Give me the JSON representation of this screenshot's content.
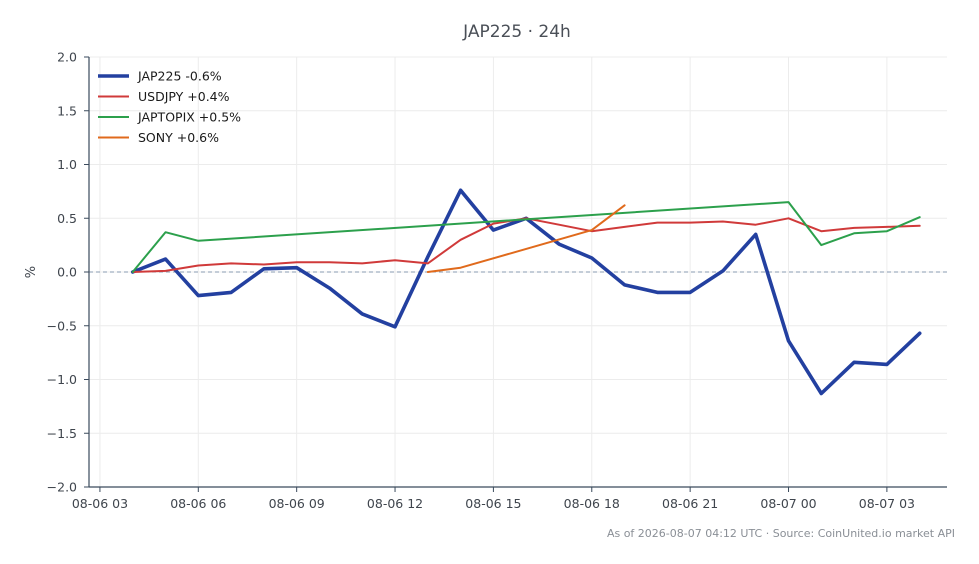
{
  "chart_data": {
    "type": "line",
    "title": "JAP225 · 24h",
    "xlabel": "",
    "ylabel": "%",
    "ylim": [
      -2.0,
      2.0
    ],
    "y_ticks": [
      -2.0,
      -1.5,
      -1.0,
      -0.5,
      0.0,
      0.5,
      1.0,
      1.5,
      2.0
    ],
    "y_tick_labels": [
      "−2.0",
      "−1.5",
      "−1.0",
      "−0.5",
      "0.0",
      "0.5",
      "1.0",
      "1.5",
      "2.0"
    ],
    "x_range": [
      "2026-08-06 02:40",
      "2026-08-07 04:50"
    ],
    "x_ticks": [
      "2026-08-06 03:00",
      "2026-08-06 06:00",
      "2026-08-06 09:00",
      "2026-08-06 12:00",
      "2026-08-06 15:00",
      "2026-08-06 18:00",
      "2026-08-06 21:00",
      "2026-08-07 00:00",
      "2026-08-07 03:00"
    ],
    "x_tick_labels": [
      "08-06 03",
      "08-06 06",
      "08-06 09",
      "08-06 12",
      "08-06 15",
      "08-06 18",
      "08-06 21",
      "08-07 00",
      "08-07 03"
    ],
    "grid": true,
    "zero_line": true,
    "legend_position": "top-left",
    "series": [
      {
        "name": "JAP225 -0.6%",
        "color": "#2340a0",
        "x": [
          "2026-08-06 04:00",
          "2026-08-06 05:00",
          "2026-08-06 06:00",
          "2026-08-06 07:00",
          "2026-08-06 08:00",
          "2026-08-06 09:00",
          "2026-08-06 10:00",
          "2026-08-06 11:00",
          "2026-08-06 12:00",
          "2026-08-06 13:00",
          "2026-08-06 14:00",
          "2026-08-06 15:00",
          "2026-08-06 16:00",
          "2026-08-06 17:00",
          "2026-08-06 18:00",
          "2026-08-06 19:00",
          "2026-08-06 20:00",
          "2026-08-06 21:00",
          "2026-08-06 22:00",
          "2026-08-06 23:00",
          "2026-08-07 00:00",
          "2026-08-07 01:00",
          "2026-08-07 02:00",
          "2026-08-07 03:00",
          "2026-08-07 04:00"
        ],
        "values": [
          0.0,
          0.12,
          -0.22,
          -0.19,
          0.03,
          0.04,
          -0.15,
          -0.39,
          -0.51,
          0.14,
          0.76,
          0.39,
          0.5,
          0.26,
          0.13,
          -0.12,
          -0.19,
          -0.19,
          0.01,
          0.35,
          -0.64,
          -1.13,
          -0.84,
          -0.86,
          -0.57
        ]
      },
      {
        "name": "USDJPY +0.4%",
        "color": "#d03a3a",
        "x": [
          "2026-08-06 04:00",
          "2026-08-06 05:00",
          "2026-08-06 06:00",
          "2026-08-06 07:00",
          "2026-08-06 08:00",
          "2026-08-06 09:00",
          "2026-08-06 10:00",
          "2026-08-06 11:00",
          "2026-08-06 12:00",
          "2026-08-06 13:00",
          "2026-08-06 14:00",
          "2026-08-06 15:00",
          "2026-08-06 16:00",
          "2026-08-06 17:00",
          "2026-08-06 18:00",
          "2026-08-06 19:00",
          "2026-08-06 20:00",
          "2026-08-06 21:00",
          "2026-08-06 22:00",
          "2026-08-06 23:00",
          "2026-08-07 00:00",
          "2026-08-07 01:00",
          "2026-08-07 02:00",
          "2026-08-07 03:00",
          "2026-08-07 04:00"
        ],
        "values": [
          0.0,
          0.01,
          0.06,
          0.08,
          0.07,
          0.09,
          0.09,
          0.08,
          0.11,
          0.08,
          0.3,
          0.45,
          0.5,
          0.44,
          0.38,
          0.42,
          0.46,
          0.46,
          0.47,
          0.44,
          0.5,
          0.38,
          0.41,
          0.42,
          0.43
        ]
      },
      {
        "name": "JAPTOPIX +0.5%",
        "color": "#2ca04c",
        "x": [
          "2026-08-06 04:00",
          "2026-08-06 05:00",
          "2026-08-06 06:00",
          "2026-08-07 00:00",
          "2026-08-07 01:00",
          "2026-08-07 02:00",
          "2026-08-07 03:00",
          "2026-08-07 04:00"
        ],
        "values": [
          0.0,
          0.37,
          0.29,
          0.65,
          0.25,
          0.36,
          0.38,
          0.51
        ]
      },
      {
        "name": "SONY +0.6%",
        "color": "#e06a1c",
        "x": [
          "2026-08-06 13:00",
          "2026-08-06 14:00",
          "2026-08-06 18:00",
          "2026-08-06 19:00"
        ],
        "values": [
          0.0,
          0.04,
          0.39,
          0.62
        ]
      }
    ],
    "footer": "As of 2026-08-07 04:12 UTC · Source: CoinUnited.io market API"
  }
}
